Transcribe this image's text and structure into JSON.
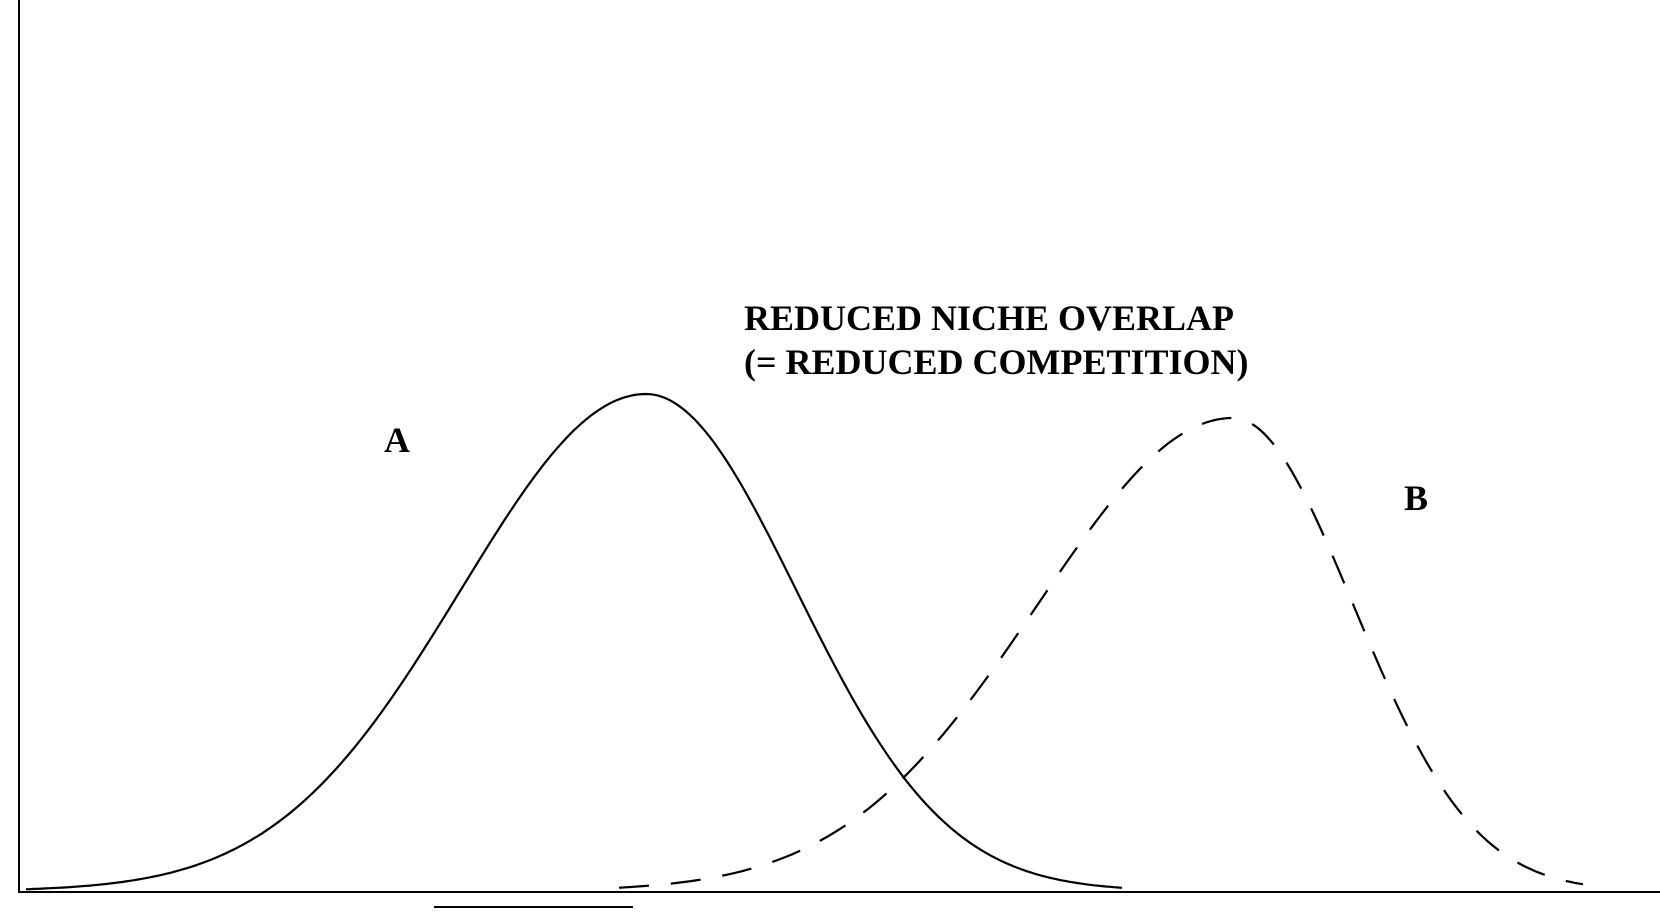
{
  "annotation": {
    "lines": [
      "REDUCED NICHE OVERLAP",
      "(= REDUCED COMPETITION)"
    ]
  },
  "curves": [
    {
      "label": "A"
    },
    {
      "label": "B"
    }
  ]
}
